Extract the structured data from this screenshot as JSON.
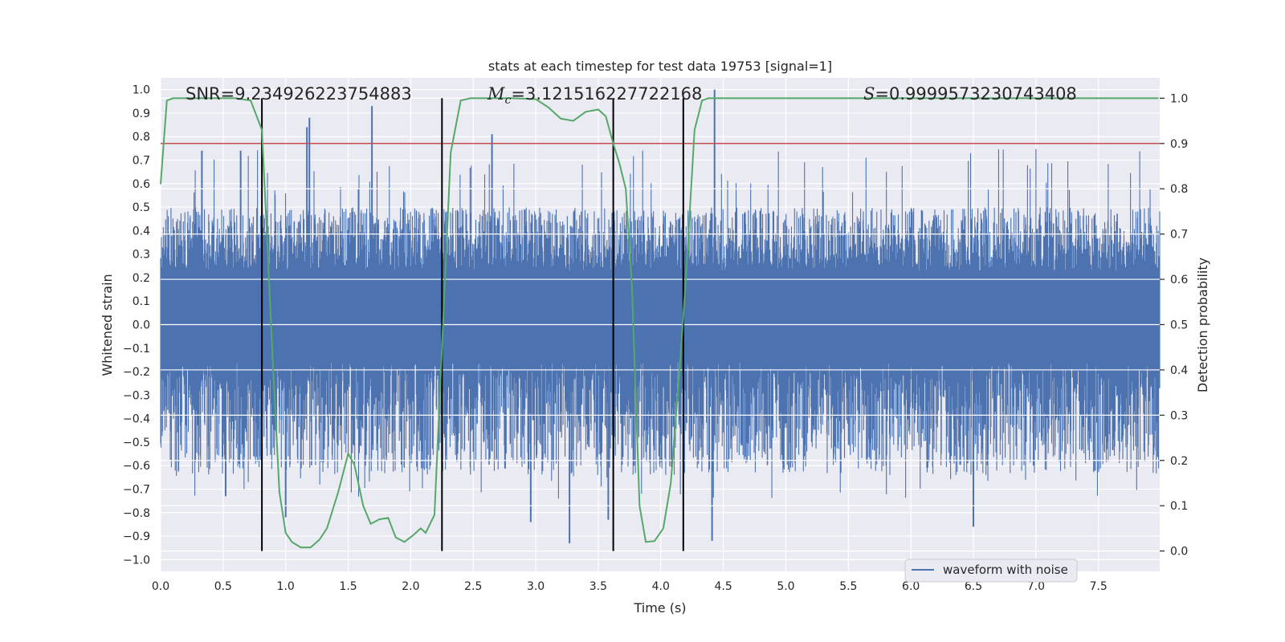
{
  "chart_data": {
    "type": "line",
    "title": "stats at each timestep for test data 19753 [signal=1]",
    "xlabel": "Time (s)",
    "ylabel": "Whitened strain",
    "y2label": "Detection probability",
    "xlim": [
      0.0,
      7.99
    ],
    "ylim": [
      -1.05,
      1.05
    ],
    "y2lim": [
      -0.045,
      1.045
    ],
    "x_ticks": [
      "0.0",
      "0.5",
      "1.0",
      "1.5",
      "2.0",
      "2.5",
      "3.0",
      "3.5",
      "4.0",
      "4.5",
      "5.0",
      "5.5",
      "6.0",
      "6.5",
      "7.0",
      "7.5"
    ],
    "x_tick_values": [
      0.0,
      0.5,
      1.0,
      1.5,
      2.0,
      2.5,
      3.0,
      3.5,
      4.0,
      4.5,
      5.0,
      5.5,
      6.0,
      6.5,
      7.0,
      7.5
    ],
    "y_ticks": [
      "1.0",
      "0.9",
      "0.8",
      "0.7",
      "0.6",
      "0.5",
      "0.4",
      "0.3",
      "0.2",
      "0.1",
      "0.0",
      "−0.1",
      "−0.2",
      "−0.3",
      "−0.4",
      "−0.5",
      "−0.6",
      "−0.7",
      "−0.8",
      "−0.9",
      "−1.0"
    ],
    "y_tick_values": [
      1.0,
      0.9,
      0.8,
      0.7,
      0.6,
      0.5,
      0.4,
      0.3,
      0.2,
      0.1,
      0.0,
      -0.1,
      -0.2,
      -0.3,
      -0.4,
      -0.5,
      -0.6,
      -0.7,
      -0.8,
      -0.9,
      -1.0
    ],
    "y2_ticks": [
      "1.0",
      "0.9",
      "0.8",
      "0.7",
      "0.6",
      "0.5",
      "0.4",
      "0.3",
      "0.2",
      "0.1",
      "0.0"
    ],
    "y2_tick_values": [
      1.0,
      0.9,
      0.8,
      0.7,
      0.6,
      0.5,
      0.4,
      0.3,
      0.2,
      0.1,
      0.0
    ],
    "annotations": {
      "snr": "SNR=9.234926223754883",
      "mc_symbol": "M",
      "mc_sub": "c",
      "mc_value": "=3.121516227722168",
      "s_symbol": "S",
      "s_value": "=0.9999573230743408"
    },
    "legend": {
      "label": "waveform with noise",
      "position": "lower-right"
    },
    "colors": {
      "waveform": "#4c72b0",
      "probability": "#55a868",
      "threshold": "#c44e52",
      "marker": "#000000",
      "background": "#eaeaf2",
      "grid": "#ffffff"
    },
    "noise_band": {
      "core_low": -0.16,
      "core_high": 0.23,
      "typical_peak": 0.5,
      "max_peak": 0.93,
      "min_peak": -0.93
    },
    "strain_peaks": [
      {
        "x": 0.33,
        "y": 0.74
      },
      {
        "x": 0.64,
        "y": 0.74
      },
      {
        "x": 1.17,
        "y": 0.84
      },
      {
        "x": 1.19,
        "y": 0.88
      },
      {
        "x": 1.69,
        "y": 0.93
      },
      {
        "x": 2.65,
        "y": 0.81
      },
      {
        "x": 4.43,
        "y": 1.0
      },
      {
        "x": 3.27,
        "y": -0.93
      },
      {
        "x": 4.41,
        "y": -0.92
      },
      {
        "x": 6.5,
        "y": -0.86
      },
      {
        "x": 1.0,
        "y": -0.82
      },
      {
        "x": 2.96,
        "y": -0.84
      },
      {
        "x": 3.58,
        "y": -0.83
      },
      {
        "x": 0.52,
        "y": -0.73
      }
    ],
    "vertical_lines": [
      0.81,
      2.25,
      3.62,
      4.18
    ],
    "threshold_y2": 0.9,
    "probability_series": {
      "name": "detection probability",
      "x": [
        0.0,
        0.05,
        0.1,
        0.2,
        0.4,
        0.6,
        0.72,
        0.81,
        0.85,
        0.9,
        0.95,
        1.0,
        1.05,
        1.12,
        1.2,
        1.27,
        1.33,
        1.42,
        1.5,
        1.55,
        1.62,
        1.68,
        1.75,
        1.82,
        1.88,
        1.95,
        2.02,
        2.08,
        2.12,
        2.19,
        2.25,
        2.32,
        2.4,
        2.48,
        2.6,
        2.8,
        3.0,
        3.1,
        3.2,
        3.3,
        3.4,
        3.5,
        3.56,
        3.62,
        3.67,
        3.72,
        3.77,
        3.83,
        3.88,
        3.95,
        4.02,
        4.08,
        4.15,
        4.2,
        4.27,
        4.33,
        4.38,
        4.45,
        4.6,
        5.0,
        6.0,
        7.0,
        7.98
      ],
      "y": [
        0.81,
        0.995,
        1.0,
        1.0,
        1.0,
        1.0,
        0.995,
        0.93,
        0.7,
        0.4,
        0.13,
        0.04,
        0.02,
        0.008,
        0.008,
        0.025,
        0.05,
        0.13,
        0.215,
        0.19,
        0.1,
        0.06,
        0.07,
        0.073,
        0.03,
        0.02,
        0.035,
        0.05,
        0.04,
        0.08,
        0.45,
        0.88,
        0.995,
        1.0,
        1.0,
        1.0,
        0.998,
        0.98,
        0.955,
        0.95,
        0.97,
        0.975,
        0.96,
        0.9,
        0.855,
        0.8,
        0.58,
        0.1,
        0.02,
        0.022,
        0.05,
        0.15,
        0.4,
        0.6,
        0.93,
        0.995,
        1.0,
        1.0,
        1.0,
        1.0,
        1.0,
        1.0,
        1.0
      ]
    }
  }
}
